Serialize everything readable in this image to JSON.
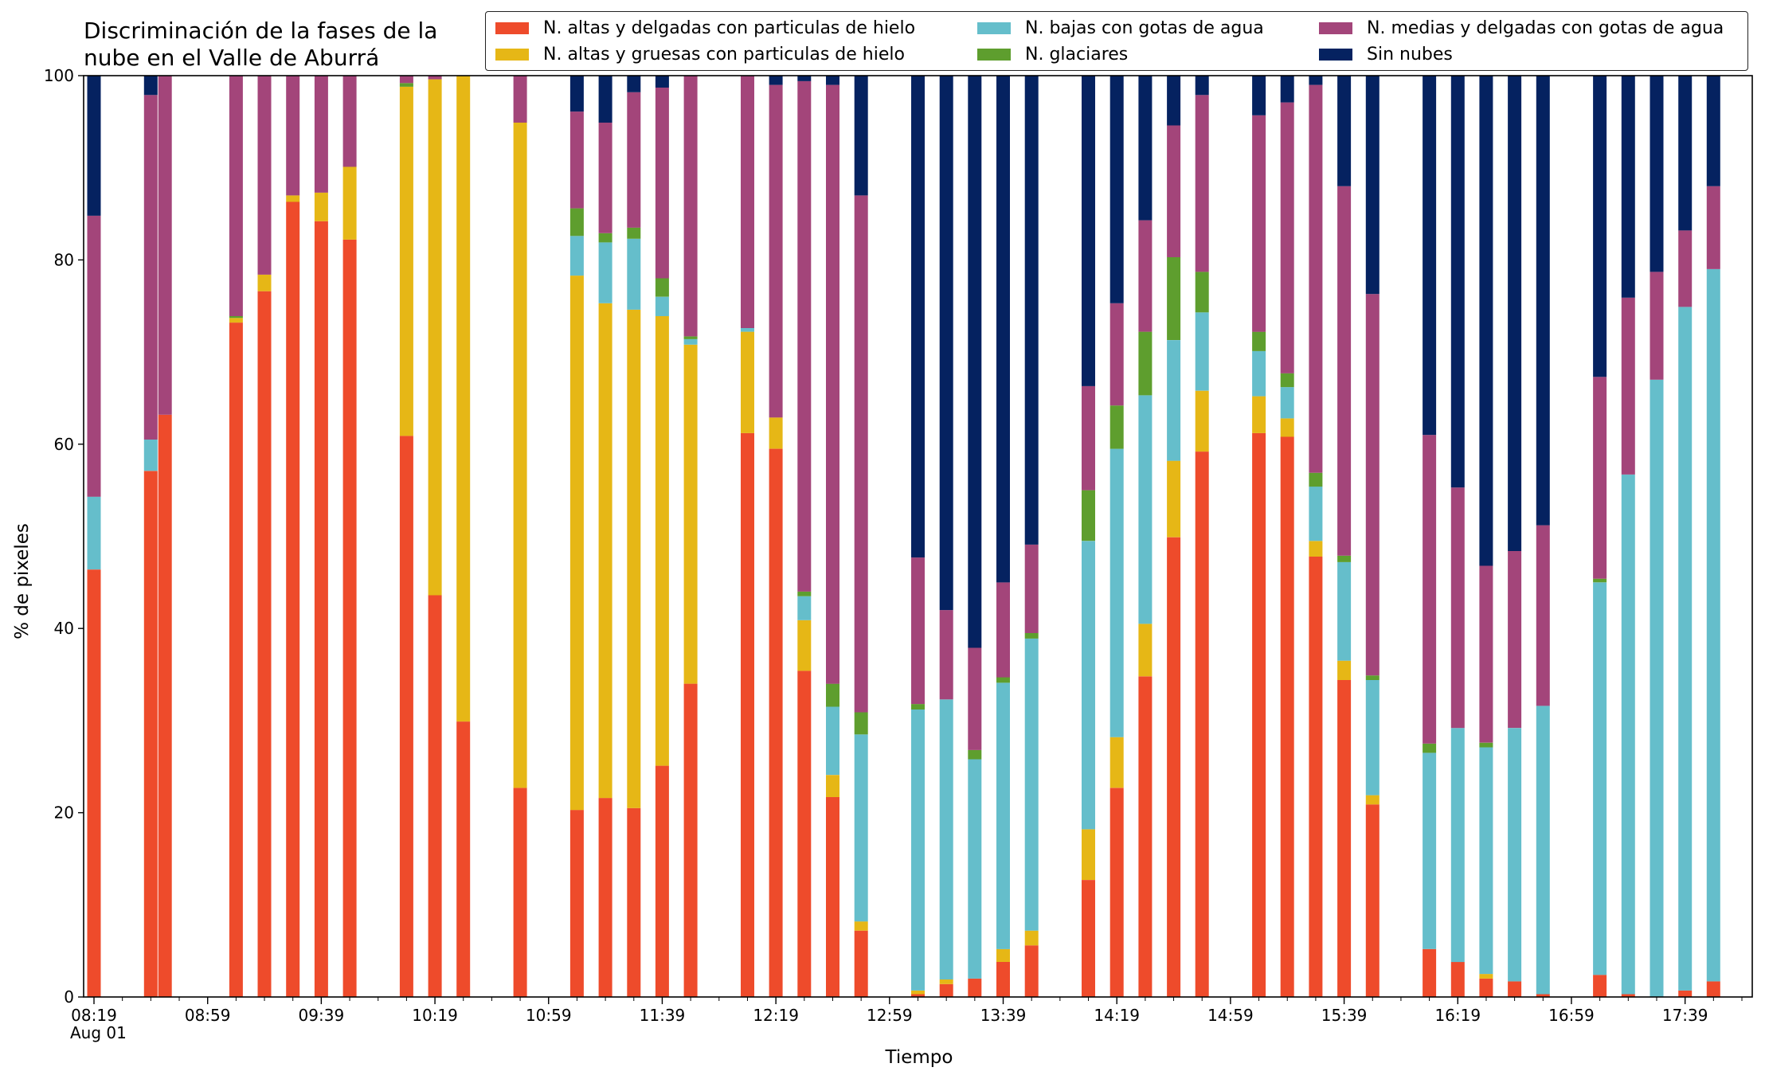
{
  "chart_data": {
    "type": "bar",
    "stacked": true,
    "title": "Discriminación de la fases de la\nnube en el Valle de Aburrá",
    "xlabel": "Tiempo",
    "ylabel": "% de pixeles",
    "ylim": [
      0,
      100
    ],
    "yticks": [
      "0",
      "20",
      "40",
      "60",
      "80",
      "100"
    ],
    "xticks": [
      "08:19",
      "08:59",
      "09:39",
      "10:19",
      "10:59",
      "11:39",
      "12:19",
      "12:59",
      "13:39",
      "14:19",
      "14:59",
      "15:39",
      "16:19",
      "16:59",
      "17:39"
    ],
    "xdate": "Aug 01",
    "legend_position": "top-right",
    "series": [
      {
        "name": "N. altas y delgadas con particulas de hielo",
        "color": "#EE4B2B"
      },
      {
        "name": "N. altas y gruesas con particulas de hielo",
        "color": "#E6B716"
      },
      {
        "name": "N. bajas con gotas de agua",
        "color": "#65BECB"
      },
      {
        "name": "N. glaciares",
        "color": "#5E9E2E"
      },
      {
        "name": "N. medias y delgadas con gotas de agua",
        "color": "#A3457A"
      },
      {
        "name": "Sin nubes",
        "color": "#052260"
      }
    ],
    "bars": [
      {
        "t": "08:19",
        "values": [
          46.4,
          0,
          7.9,
          0,
          30.5,
          15.2
        ]
      },
      {
        "t": "08:39",
        "values": [
          57.1,
          0,
          3.4,
          0,
          37.4,
          2.1
        ]
      },
      {
        "t": "08:44",
        "values": [
          63.2,
          0,
          0,
          0,
          36.8,
          0
        ]
      },
      {
        "t": "08:49",
        "values": [
          null,
          null,
          null,
          null,
          null,
          null
        ]
      },
      {
        "t": "09:09",
        "values": [
          73.2,
          0.5,
          0,
          0.2,
          26.1,
          0
        ]
      },
      {
        "t": "09:19",
        "values": [
          76.6,
          1.8,
          0,
          0,
          21.6,
          0
        ]
      },
      {
        "t": "09:29",
        "values": [
          86.3,
          0.7,
          0,
          0,
          13.0,
          0
        ]
      },
      {
        "t": "09:39",
        "values": [
          84.2,
          3.1,
          0,
          0,
          12.7,
          0
        ]
      },
      {
        "t": "09:49",
        "values": [
          82.2,
          7.9,
          0,
          0,
          9.9,
          0
        ]
      },
      {
        "t": "10:09",
        "values": [
          60.9,
          37.9,
          0,
          0.4,
          0.8,
          0
        ]
      },
      {
        "t": "10:19",
        "values": [
          43.6,
          56.0,
          0,
          0,
          0.4,
          0
        ]
      },
      {
        "t": "10:29",
        "values": [
          29.9,
          70.1,
          0,
          0,
          0,
          0
        ]
      },
      {
        "t": "10:49",
        "values": [
          22.7,
          72.2,
          0,
          0,
          5.1,
          0
        ]
      },
      {
        "t": "11:09",
        "values": [
          20.3,
          58.0,
          4.3,
          3.0,
          10.5,
          3.9
        ]
      },
      {
        "t": "11:19",
        "values": [
          21.6,
          53.7,
          6.6,
          1.0,
          12.0,
          5.1
        ]
      },
      {
        "t": "11:29",
        "values": [
          20.5,
          54.1,
          7.7,
          1.2,
          14.7,
          1.8
        ]
      },
      {
        "t": "11:39",
        "values": [
          25.1,
          48.8,
          2.1,
          2.0,
          20.7,
          1.3
        ]
      },
      {
        "t": "11:49",
        "values": [
          34.0,
          36.8,
          0.6,
          0.3,
          28.3,
          0
        ]
      },
      {
        "t": "12:09",
        "values": [
          61.2,
          11.0,
          0.4,
          0,
          27.4,
          0
        ]
      },
      {
        "t": "12:19",
        "values": [
          59.5,
          3.4,
          0,
          0,
          36.1,
          1.0
        ]
      },
      {
        "t": "12:29",
        "values": [
          35.4,
          5.5,
          2.6,
          0.5,
          55.4,
          0.6
        ]
      },
      {
        "t": "12:39",
        "values": [
          21.7,
          2.4,
          7.4,
          2.5,
          65.0,
          1.0
        ]
      },
      {
        "t": "12:49",
        "values": [
          7.2,
          1.0,
          20.3,
          2.4,
          56.1,
          13.0
        ]
      },
      {
        "t": "13:09",
        "values": [
          0.3,
          0.4,
          30.5,
          0.6,
          15.9,
          52.3
        ]
      },
      {
        "t": "13:19",
        "values": [
          1.4,
          0.5,
          30.4,
          0,
          9.7,
          58.0
        ]
      },
      {
        "t": "13:29",
        "values": [
          2.0,
          0,
          23.8,
          1.0,
          11.1,
          62.1
        ]
      },
      {
        "t": "13:39",
        "values": [
          3.8,
          1.4,
          28.9,
          0.6,
          10.3,
          55.0
        ]
      },
      {
        "t": "13:49",
        "values": [
          5.6,
          1.6,
          31.7,
          0.6,
          9.6,
          50.9
        ]
      },
      {
        "t": "14:09",
        "values": [
          12.7,
          5.5,
          31.3,
          5.5,
          11.3,
          33.7
        ]
      },
      {
        "t": "14:19",
        "values": [
          22.7,
          5.5,
          31.3,
          4.7,
          11.1,
          24.7
        ]
      },
      {
        "t": "14:29",
        "values": [
          34.8,
          5.7,
          24.8,
          6.9,
          12.1,
          15.7
        ]
      },
      {
        "t": "14:39",
        "values": [
          49.9,
          8.3,
          13.1,
          9.0,
          14.3,
          5.4
        ]
      },
      {
        "t": "14:49",
        "values": [
          59.2,
          6.6,
          8.5,
          4.4,
          19.2,
          2.1
        ]
      },
      {
        "t": "15:09",
        "values": [
          61.2,
          4.0,
          4.9,
          2.1,
          23.5,
          4.3
        ]
      },
      {
        "t": "15:19",
        "values": [
          60.8,
          2.0,
          3.4,
          1.5,
          29.4,
          2.9
        ]
      },
      {
        "t": "15:29",
        "values": [
          47.8,
          1.7,
          5.9,
          1.5,
          42.1,
          1.0
        ]
      },
      {
        "t": "15:39",
        "values": [
          34.4,
          2.1,
          10.7,
          0.7,
          40.1,
          12.0
        ]
      },
      {
        "t": "15:49",
        "values": [
          20.9,
          1.0,
          12.5,
          0.5,
          41.4,
          23.7
        ]
      },
      {
        "t": "16:09",
        "values": [
          5.2,
          0,
          21.3,
          1.0,
          33.5,
          39.0
        ]
      },
      {
        "t": "16:19",
        "values": [
          3.8,
          0,
          25.4,
          0,
          26.1,
          44.7
        ]
      },
      {
        "t": "16:29",
        "values": [
          2.0,
          0.5,
          24.6,
          0.5,
          19.2,
          53.2
        ]
      },
      {
        "t": "16:39",
        "values": [
          1.7,
          0,
          27.5,
          0,
          19.2,
          51.6
        ]
      },
      {
        "t": "16:49",
        "values": [
          0.3,
          0,
          31.3,
          0,
          19.6,
          48.8
        ]
      },
      {
        "t": "17:09",
        "values": [
          2.4,
          0,
          42.6,
          0.4,
          21.9,
          32.7
        ]
      },
      {
        "t": "17:19",
        "values": [
          0.3,
          0,
          56.4,
          0,
          19.2,
          24.1
        ]
      },
      {
        "t": "17:29",
        "values": [
          0,
          0,
          67.0,
          0,
          11.7,
          21.3
        ]
      },
      {
        "t": "17:39",
        "values": [
          0.7,
          0,
          74.2,
          0,
          8.3,
          16.8
        ]
      },
      {
        "t": "17:49",
        "values": [
          1.7,
          0,
          77.3,
          0,
          9.0,
          12.0
        ]
      }
    ]
  }
}
